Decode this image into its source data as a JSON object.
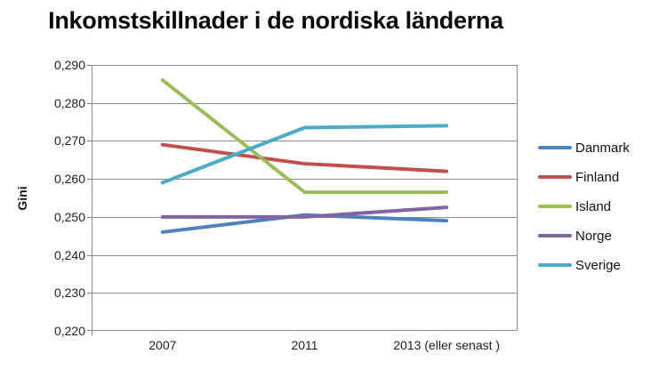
{
  "chart_data": {
    "type": "line",
    "title": "Inkomstskillnader i de nordiska länderna",
    "xlabel": "",
    "ylabel": "Gini",
    "categories": [
      "2007",
      "2011",
      "2013 (eller senast )"
    ],
    "series": [
      {
        "name": "Danmark",
        "color": "#4F81BD",
        "values": [
          0.246,
          0.2505,
          0.249
        ]
      },
      {
        "name": "Finland",
        "color": "#C0504D",
        "values": [
          0.269,
          0.264,
          0.262
        ]
      },
      {
        "name": "Island",
        "color": "#9BBB59",
        "values": [
          0.286,
          0.2565,
          0.2565
        ]
      },
      {
        "name": "Norge",
        "color": "#8064A2",
        "values": [
          0.25,
          0.25,
          0.2525
        ]
      },
      {
        "name": "Sverige",
        "color": "#4BACC6",
        "values": [
          0.259,
          0.2735,
          0.274
        ]
      }
    ],
    "ylim": [
      0.22,
      0.29
    ],
    "ytick_step": 0.01,
    "ytick_labels": [
      "0,290",
      "0,280",
      "0,270",
      "0,260",
      "0,250",
      "0,240",
      "0,230",
      "0,220"
    ],
    "grid": true,
    "legend_position": "right",
    "grid_color": "#8C8C8C",
    "axis_color": "#808080",
    "text_color": "#1f1f1f"
  }
}
